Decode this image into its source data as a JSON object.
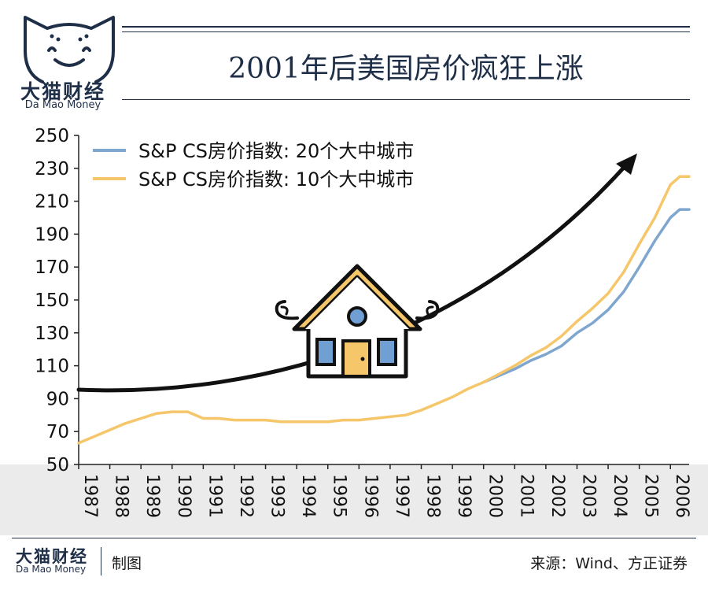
{
  "brand": {
    "name": "大猫财经",
    "sub": "Da Mao Money"
  },
  "title": "2001年后美国房价疯狂上涨",
  "footer": {
    "credit": "制图",
    "source": "来源：Wind、方正证券"
  },
  "colors": {
    "navy": "#1f2f48",
    "series_20": "#7ea6cf",
    "series_10": "#f6c66a",
    "house_fill": "#f6c66a",
    "house_blue": "#6f9fd3"
  },
  "chart_data": {
    "type": "line",
    "title": "",
    "xlabel": "",
    "ylabel": "",
    "ylim": [
      50,
      250
    ],
    "yticks": [
      50,
      70,
      90,
      110,
      130,
      150,
      170,
      190,
      210,
      230,
      250
    ],
    "xlim": [
      1987,
      2006.6
    ],
    "xticks": [
      "1987",
      "1988",
      "1989",
      "1990",
      "1991",
      "1992",
      "1993",
      "1994",
      "1995",
      "1996",
      "1997",
      "1998",
      "1999",
      "2000",
      "2001",
      "2002",
      "2003",
      "2004",
      "2005",
      "2006"
    ],
    "legend_position": "top-left",
    "series": [
      {
        "name": "S&P CS房价指数: 20个大中城市",
        "color": "#7ea6cf",
        "points": [
          [
            2000.0,
            100
          ],
          [
            2000.5,
            104
          ],
          [
            2001.0,
            108
          ],
          [
            2001.5,
            113
          ],
          [
            2002.0,
            117
          ],
          [
            2002.5,
            122
          ],
          [
            2003.0,
            130
          ],
          [
            2003.5,
            136
          ],
          [
            2004.0,
            144
          ],
          [
            2004.5,
            155
          ],
          [
            2005.0,
            170
          ],
          [
            2005.5,
            186
          ],
          [
            2006.0,
            200
          ],
          [
            2006.3,
            205
          ],
          [
            2006.6,
            205
          ]
        ]
      },
      {
        "name": "S&P CS房价指数: 10个大中城市",
        "color": "#f6c66a",
        "points": [
          [
            1987.0,
            63
          ],
          [
            1987.5,
            67
          ],
          [
            1988.0,
            71
          ],
          [
            1988.5,
            75
          ],
          [
            1989.0,
            78
          ],
          [
            1989.5,
            81
          ],
          [
            1990.0,
            82
          ],
          [
            1990.5,
            82
          ],
          [
            1991.0,
            78
          ],
          [
            1991.5,
            78
          ],
          [
            1992.0,
            77
          ],
          [
            1992.5,
            77
          ],
          [
            1993.0,
            77
          ],
          [
            1993.5,
            76
          ],
          [
            1994.0,
            76
          ],
          [
            1994.5,
            76
          ],
          [
            1995.0,
            76
          ],
          [
            1995.5,
            77
          ],
          [
            1996.0,
            77
          ],
          [
            1996.5,
            78
          ],
          [
            1997.0,
            79
          ],
          [
            1997.5,
            80
          ],
          [
            1998.0,
            83
          ],
          [
            1998.5,
            87
          ],
          [
            1999.0,
            91
          ],
          [
            1999.5,
            96
          ],
          [
            2000.0,
            100
          ],
          [
            2000.5,
            105
          ],
          [
            2001.0,
            110
          ],
          [
            2001.5,
            116
          ],
          [
            2002.0,
            121
          ],
          [
            2002.5,
            128
          ],
          [
            2003.0,
            137
          ],
          [
            2003.5,
            145
          ],
          [
            2004.0,
            154
          ],
          [
            2004.5,
            167
          ],
          [
            2005.0,
            184
          ],
          [
            2005.5,
            200
          ],
          [
            2006.0,
            220
          ],
          [
            2006.3,
            225
          ],
          [
            2006.6,
            225
          ]
        ]
      }
    ]
  }
}
